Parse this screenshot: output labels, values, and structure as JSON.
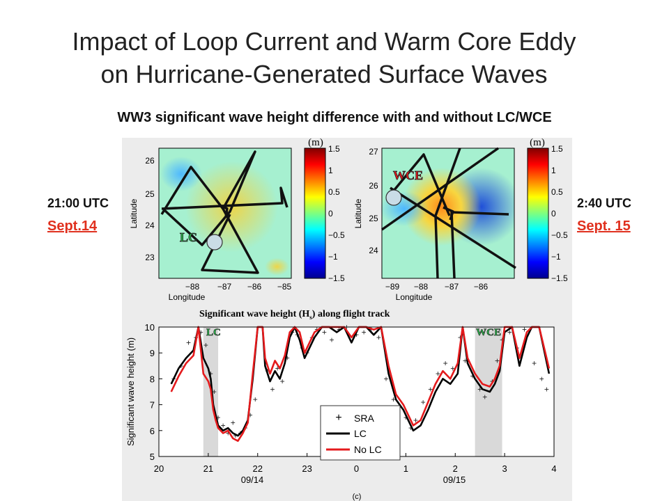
{
  "slide": {
    "title_line1": "Impact of Loop Current and Warm Core Eddy",
    "title_line2": "on Hurricane-Generated Surface Waves",
    "subtitle": "WW3 significant wave height  difference with and without LC/WCE"
  },
  "left_annot": {
    "time": "21:00 UTC",
    "date": "Sept.14"
  },
  "right_annot": {
    "time": "2:40 UTC",
    "date": "Sept. 15"
  },
  "colors": {
    "date_red": "#e0301e",
    "lc_line": "#000000",
    "nolc_line": "#e41a1c",
    "marker_fill": "#c9dce6",
    "shade": "#d9d9d9"
  },
  "maps": [
    {
      "feature_label": "LC",
      "colorbar_unit": "(m)",
      "xlabel": "Longitude",
      "ylabel": "Latitude",
      "xticks": [
        "−88",
        "−87",
        "−86",
        "−85"
      ],
      "yticks": [
        "26",
        "25",
        "24",
        "23"
      ],
      "cbar_ticks": [
        "1.5",
        "1",
        "0.5",
        "0",
        "−0.5",
        "−1",
        "−1.5"
      ]
    },
    {
      "feature_label": "WCE",
      "colorbar_unit": "(m)",
      "xlabel": "Longitude",
      "ylabel": "Latitude",
      "xticks": [
        "−89",
        "−88",
        "−87",
        "−86"
      ],
      "yticks": [
        "27",
        "26",
        "25",
        "24"
      ],
      "cbar_ticks": [
        "1.5",
        "1",
        "0.5",
        "0",
        "−0.5",
        "−1",
        "−1.5"
      ]
    }
  ],
  "chart_data": {
    "type": "line",
    "title_prefix": "Significant wave height (H",
    "title_sub": "s",
    "title_suffix": ")   along flight track",
    "ylabel": "Significant wave height (m)",
    "xticks": [
      "20",
      "21",
      "22",
      "23",
      "0",
      "1",
      "2",
      "3",
      "4"
    ],
    "date_labels": [
      "09/14",
      "09/15"
    ],
    "panel_label": "(c)",
    "ylim": [
      5,
      10
    ],
    "xlim": [
      20,
      28
    ],
    "yticks": [
      "5",
      "6",
      "7",
      "8",
      "9",
      "10"
    ],
    "shaded_regions": [
      {
        "label": "LC",
        "x": [
          20.9,
          21.2
        ]
      },
      {
        "label": "WCE",
        "x": [
          26.4,
          26.95
        ]
      }
    ],
    "legend": {
      "position": "bottom-center",
      "entries": [
        "SRA",
        "LC",
        "No LC"
      ]
    },
    "series": [
      {
        "name": "LC",
        "x": [
          20.25,
          20.4,
          20.55,
          20.7,
          20.8,
          20.9,
          21.0,
          21.05,
          21.1,
          21.15,
          21.2,
          21.3,
          21.4,
          21.5,
          21.6,
          21.7,
          21.8,
          21.9,
          22.0,
          22.1,
          22.15,
          22.25,
          22.35,
          22.45,
          22.55,
          22.65,
          22.75,
          22.85,
          22.95,
          23.05,
          23.15,
          23.3,
          23.45,
          23.6,
          23.75,
          23.9,
          24.05,
          24.2,
          24.35,
          24.5,
          24.65,
          24.8,
          24.95,
          25.05,
          25.15,
          25.3,
          25.45,
          25.6,
          25.75,
          25.9,
          26.05,
          26.15,
          26.25,
          26.4,
          26.55,
          26.7,
          26.8,
          26.9,
          27.0,
          27.15,
          27.3,
          27.45,
          27.55,
          27.7,
          27.9
        ],
        "y": [
          7.8,
          8.4,
          8.8,
          9.1,
          10,
          8.8,
          8.4,
          8.0,
          7.0,
          6.6,
          6.2,
          6.0,
          6.1,
          5.9,
          5.8,
          6.0,
          6.4,
          8.0,
          10,
          10,
          8.5,
          7.9,
          8.3,
          8.0,
          8.6,
          9.6,
          10,
          9.5,
          8.8,
          9.2,
          9.6,
          10,
          10,
          9.8,
          10,
          9.4,
          10,
          10,
          9.7,
          10,
          8.2,
          7.2,
          6.8,
          6.4,
          6.0,
          6.2,
          6.8,
          7.5,
          8.0,
          7.8,
          8.2,
          10,
          8.6,
          8.0,
          7.6,
          7.5,
          7.8,
          8.3,
          9.8,
          10,
          8.5,
          9.6,
          10,
          10,
          8.2
        ]
      },
      {
        "name": "No LC",
        "x": [
          20.25,
          20.4,
          20.55,
          20.7,
          20.8,
          20.9,
          21.0,
          21.05,
          21.1,
          21.15,
          21.2,
          21.3,
          21.4,
          21.5,
          21.6,
          21.7,
          21.8,
          21.9,
          22.0,
          22.1,
          22.15,
          22.25,
          22.35,
          22.45,
          22.55,
          22.65,
          22.75,
          22.85,
          22.95,
          23.05,
          23.15,
          23.3,
          23.45,
          23.6,
          23.75,
          23.9,
          24.05,
          24.2,
          24.35,
          24.5,
          24.65,
          24.8,
          24.95,
          25.05,
          25.15,
          25.3,
          25.45,
          25.6,
          25.75,
          25.9,
          26.05,
          26.15,
          26.25,
          26.4,
          26.55,
          26.7,
          26.8,
          26.9,
          27.0,
          27.15,
          27.3,
          27.45,
          27.55,
          27.7,
          27.9
        ],
        "y": [
          7.5,
          8.1,
          8.6,
          8.9,
          10,
          8.2,
          7.9,
          7.6,
          6.8,
          6.4,
          6.1,
          5.9,
          6.0,
          5.7,
          5.6,
          5.9,
          6.3,
          8.2,
          10,
          10,
          8.8,
          8.2,
          8.7,
          8.4,
          8.9,
          9.8,
          10,
          9.8,
          9.0,
          9.4,
          9.8,
          10,
          10,
          10,
          10,
          9.6,
          10,
          10,
          9.9,
          10,
          8.5,
          7.4,
          7.0,
          6.6,
          6.2,
          6.4,
          7.1,
          7.8,
          8.3,
          8.0,
          8.6,
          10,
          8.8,
          8.2,
          7.8,
          7.7,
          8.0,
          8.5,
          10,
          10,
          8.8,
          9.8,
          10,
          10,
          8.4
        ]
      },
      {
        "name": "SRA",
        "x": [
          20.3,
          20.45,
          20.6,
          20.75,
          20.85,
          20.95,
          21.05,
          21.12,
          21.2,
          21.3,
          21.4,
          21.5,
          21.55,
          21.65,
          21.75,
          21.85,
          21.95,
          22.2,
          22.3,
          22.4,
          22.5,
          22.6,
          22.7,
          22.8,
          22.9,
          23.0,
          23.1,
          23.2,
          23.35,
          23.5,
          23.65,
          23.8,
          24.0,
          24.15,
          24.3,
          24.45,
          24.6,
          24.75,
          24.85,
          25.0,
          25.1,
          25.2,
          25.35,
          25.5,
          25.65,
          25.8,
          25.95,
          26.1,
          26.2,
          26.35,
          26.5,
          26.6,
          26.75,
          26.85,
          26.95,
          27.1,
          27.25,
          27.4,
          27.6,
          27.75,
          27.85
        ],
        "y": [
          8.0,
          8.5,
          9.4,
          9.6,
          9.8,
          9.3,
          8.2,
          7.5,
          6.5,
          6.2,
          5.9,
          6.3,
          5.8,
          5.9,
          6.1,
          6.6,
          7.2,
          8.3,
          7.6,
          8.4,
          7.9,
          8.8,
          9.8,
          9.7,
          9.2,
          9.0,
          9.6,
          9.9,
          9.8,
          9.5,
          9.9,
          10,
          9.7,
          9.8,
          9.9,
          9.6,
          8.0,
          7.2,
          6.9,
          6.5,
          6.1,
          6.4,
          7.1,
          7.6,
          8.2,
          8.6,
          8.4,
          9.6,
          8.7,
          8.1,
          7.6,
          7.3,
          7.9,
          8.7,
          9.5,
          9.8,
          9.2,
          9.9,
          8.6,
          8.0,
          7.6
        ]
      }
    ]
  }
}
